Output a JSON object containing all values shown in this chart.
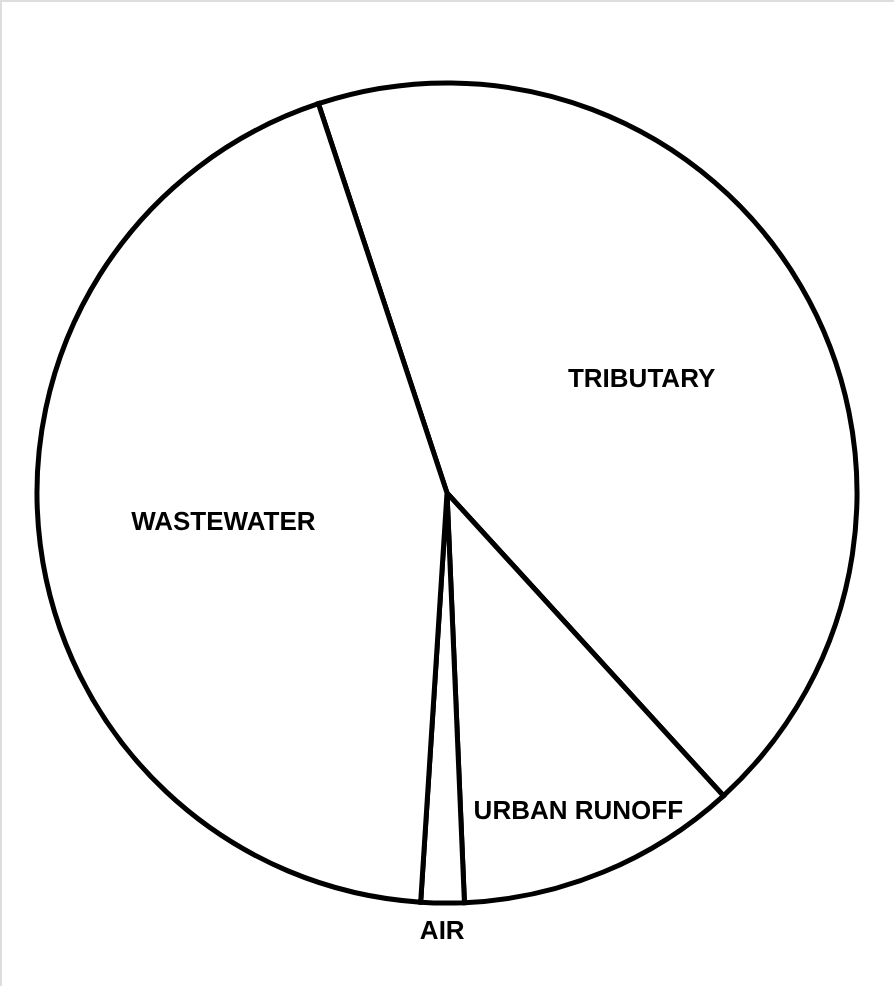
{
  "chart_data": {
    "type": "pie",
    "categories": [
      "TRIBUTARY",
      "URBAN RUNOFF",
      "AIR",
      "WASTEWATER"
    ],
    "values": [
      43.3,
      11.1,
      1.7,
      43.9
    ],
    "colors": [
      "#ffffff",
      "#ffffff",
      "#ffffff",
      "#ffffff"
    ]
  }
}
